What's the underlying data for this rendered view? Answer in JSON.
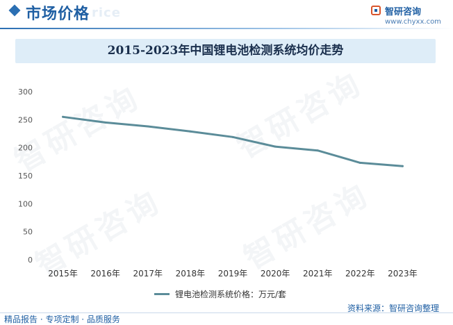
{
  "header": {
    "title": "市场价格",
    "title_shadow": "rice",
    "brand_name": "智研咨询",
    "brand_url": "www.chyxx.com"
  },
  "colors": {
    "accent": "#1f5fa3",
    "line": "#5b8c99",
    "title_bg": "#deedf8"
  },
  "watermark_text": "智研咨询",
  "chart_data": {
    "type": "line",
    "title": "2015-2023年中国锂电池检测系统均价走势",
    "categories": [
      "2015年",
      "2016年",
      "2017年",
      "2018年",
      "2019年",
      "2020年",
      "2021年",
      "2022年",
      "2023年"
    ],
    "series": [
      {
        "name": "锂电池检测系统价格：万元/套",
        "values": [
          255,
          245,
          238,
          229,
          219,
          202,
          195,
          173,
          167
        ]
      }
    ],
    "ylim": [
      0,
      300
    ],
    "yticks": [
      0,
      50,
      100,
      150,
      200,
      250,
      300
    ],
    "grid": false,
    "legend": "bottom"
  },
  "footer": {
    "source": "资料来源：智研咨询整理",
    "services": "精品报告 · 专项定制 · 品质服务"
  }
}
